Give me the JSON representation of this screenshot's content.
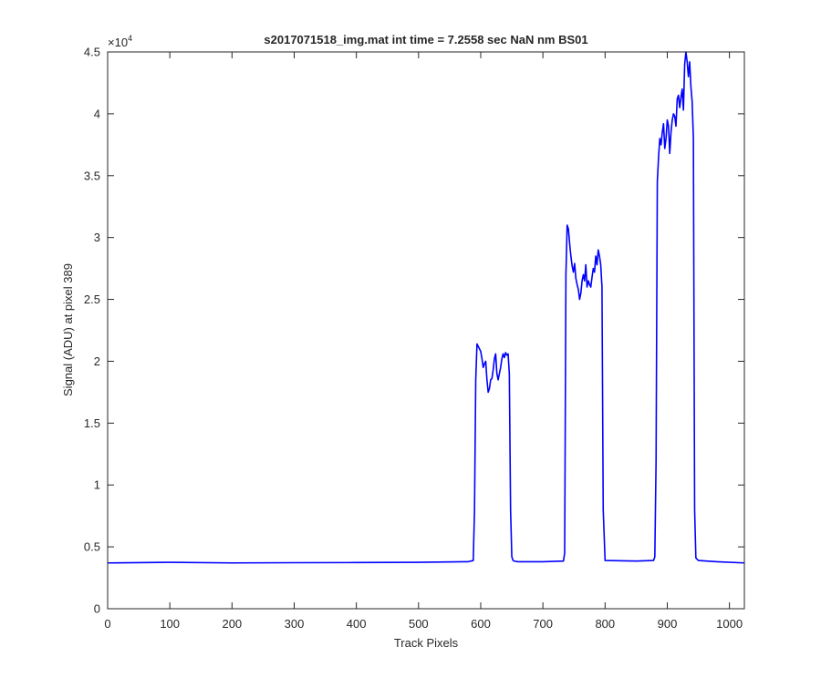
{
  "chart_data": {
    "type": "line",
    "title": "s2017071518_img.mat int time = 7.2558 sec  NaN nm BS01",
    "xlabel": "Track Pixels",
    "ylabel": "Signal (ADU) at pixel 389",
    "xlim": [
      0,
      1024
    ],
    "ylim": [
      0,
      45000
    ],
    "x_ticks": [
      0,
      100,
      200,
      300,
      400,
      500,
      600,
      700,
      800,
      900,
      1000
    ],
    "x_tick_labels": [
      "0",
      "100",
      "200",
      "300",
      "400",
      "500",
      "600",
      "700",
      "800",
      "900",
      "1000"
    ],
    "y_ticks": [
      0,
      5000,
      10000,
      15000,
      20000,
      25000,
      30000,
      35000,
      40000,
      45000
    ],
    "y_tick_labels": [
      "0",
      "0.5",
      "1",
      "1.5",
      "2",
      "2.5",
      "3",
      "3.5",
      "4",
      "4.5"
    ],
    "y_exponent_label": "×10",
    "y_exponent_power": "4",
    "grid": false,
    "line_color": "#0000ff",
    "series": [
      {
        "x": [
          0,
          100,
          200,
          300,
          400,
          500,
          580,
          588,
          590,
          592,
          594,
          596,
          598,
          600,
          602,
          604,
          606,
          608,
          610,
          612,
          614,
          616,
          618,
          620,
          622,
          624,
          626,
          628,
          630,
          632,
          634,
          636,
          638,
          640,
          642,
          644,
          646,
          648,
          650,
          652,
          654,
          660,
          700,
          733,
          735,
          737,
          739,
          741,
          743,
          745,
          747,
          749,
          751,
          753,
          755,
          757,
          759,
          761,
          763,
          765,
          767,
          769,
          771,
          773,
          775,
          777,
          779,
          781,
          783,
          785,
          787,
          789,
          791,
          793,
          795,
          797,
          800,
          850,
          878,
          880,
          882,
          884,
          886,
          888,
          890,
          892,
          894,
          896,
          898,
          900,
          902,
          904,
          906,
          908,
          910,
          912,
          914,
          916,
          918,
          920,
          922,
          924,
          926,
          928,
          930,
          932,
          934,
          936,
          938,
          940,
          942,
          944,
          946,
          948,
          950,
          980,
          1024
        ],
        "y": [
          3700,
          3750,
          3700,
          3720,
          3730,
          3750,
          3800,
          3900,
          8000,
          18500,
          21400,
          21200,
          21000,
          20800,
          20200,
          19500,
          19800,
          20000,
          18500,
          17500,
          17800,
          18500,
          18600,
          19300,
          20200,
          20600,
          19000,
          18500,
          19000,
          19500,
          20200,
          20600,
          20300,
          20700,
          20500,
          20600,
          19000,
          8000,
          4200,
          3900,
          3850,
          3800,
          3800,
          3850,
          4500,
          27000,
          31000,
          30700,
          29500,
          28500,
          27700,
          27200,
          27900,
          26700,
          26200,
          25800,
          25000,
          25500,
          26500,
          27000,
          26500,
          27800,
          26000,
          26500,
          26200,
          26000,
          26800,
          27500,
          27200,
          28500,
          27800,
          29000,
          28500,
          27800,
          26000,
          8000,
          3900,
          3850,
          3900,
          4200,
          12000,
          34500,
          36500,
          38000,
          37500,
          38500,
          39200,
          37200,
          38000,
          39500,
          39000,
          36800,
          38500,
          39500,
          40000,
          39800,
          39000,
          41200,
          41500,
          40500,
          41300,
          42000,
          40300,
          44000,
          45000,
          44200,
          43000,
          44200,
          42200,
          41000,
          38000,
          8000,
          4100,
          4000,
          3900,
          3800,
          3700
        ]
      }
    ]
  }
}
